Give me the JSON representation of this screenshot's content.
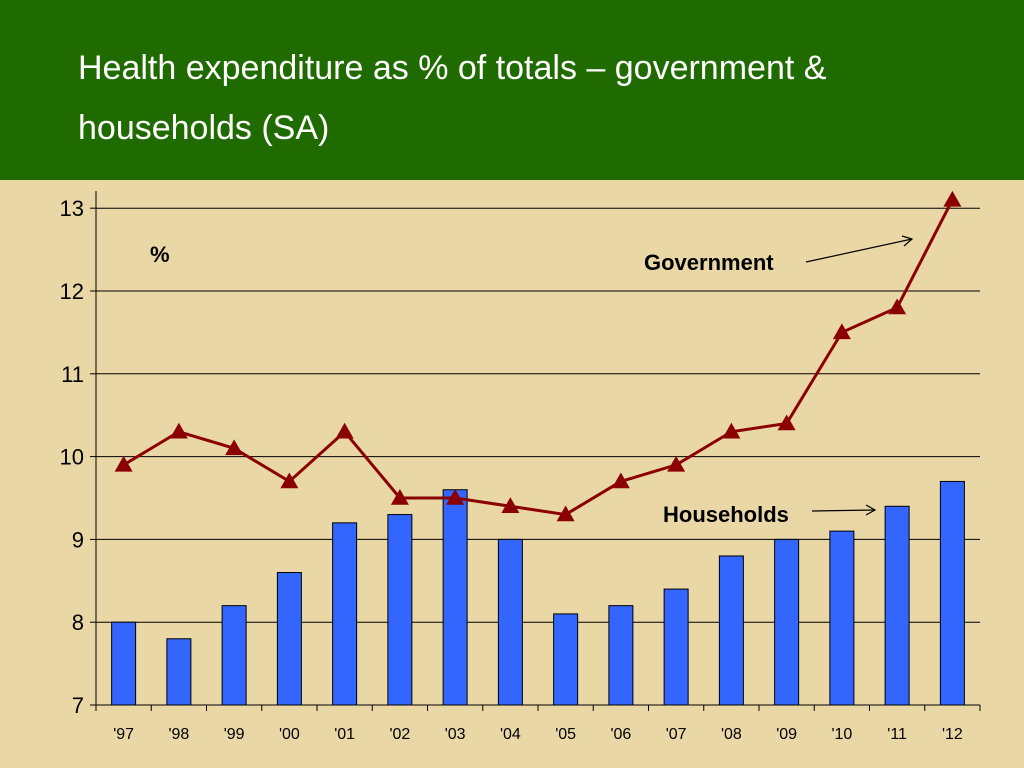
{
  "slide": {
    "title": "Health expenditure as % of totals – government & households (SA)"
  },
  "chart_data": {
    "type": "bar",
    "title": "",
    "xlabel": "",
    "ylabel": "%",
    "ylim": [
      7,
      13
    ],
    "yticks": [
      7,
      8,
      9,
      10,
      11,
      12,
      13
    ],
    "grid": "horizontal",
    "categories": [
      "'97",
      "'98",
      "'99",
      "'00",
      "'01",
      "'02",
      "'03",
      "'04",
      "'05",
      "'06",
      "'07",
      "'08",
      "'09",
      "'10",
      "'11",
      "'12"
    ],
    "series": [
      {
        "name": "Households",
        "kind": "bar",
        "color": "#3366ff",
        "values": [
          8.0,
          7.8,
          8.2,
          8.6,
          9.2,
          9.3,
          9.6,
          9.0,
          8.1,
          8.2,
          8.4,
          8.8,
          9.0,
          9.1,
          9.4,
          9.7
        ]
      },
      {
        "name": "Government",
        "kind": "line",
        "marker": "triangle",
        "color": "#8b0000",
        "values": [
          9.9,
          10.3,
          10.1,
          9.7,
          10.3,
          9.5,
          9.5,
          9.4,
          9.3,
          9.7,
          9.9,
          10.3,
          10.4,
          11.5,
          11.8,
          13.1
        ]
      }
    ],
    "annotations": {
      "unit_label": "%",
      "government_label": "Government",
      "households_label": "Households"
    }
  }
}
